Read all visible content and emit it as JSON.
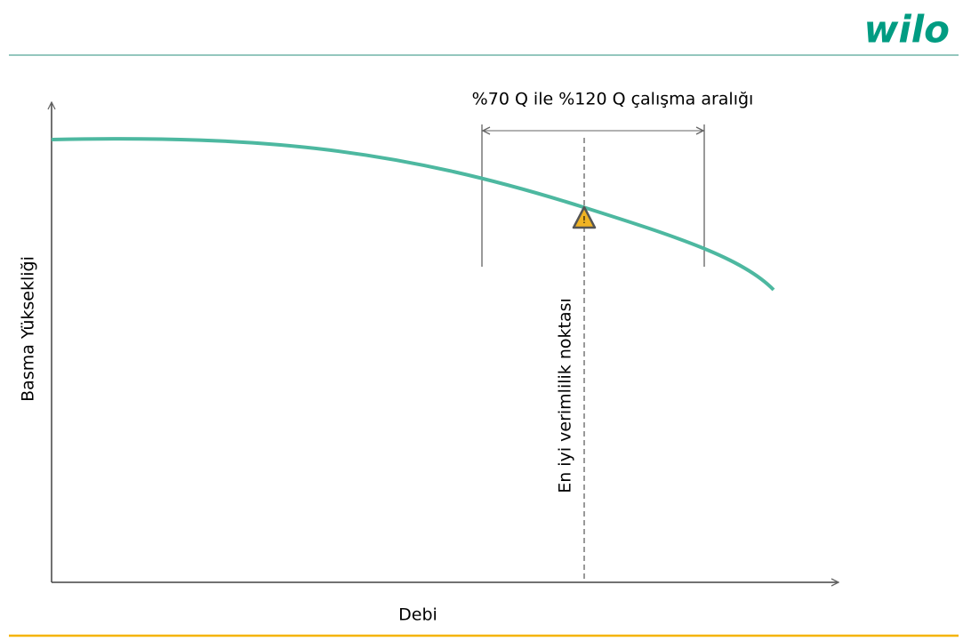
{
  "header": {
    "logo": "wilo"
  },
  "axes": {
    "y_label": "Basma Yüksekliği",
    "x_label": "Debi"
  },
  "annotations": {
    "range_label": "%70 Q ile %120 Q çalışma aralığı",
    "bep_label": "En iyi verimlilik noktası",
    "bep_symbol": "!"
  }
}
